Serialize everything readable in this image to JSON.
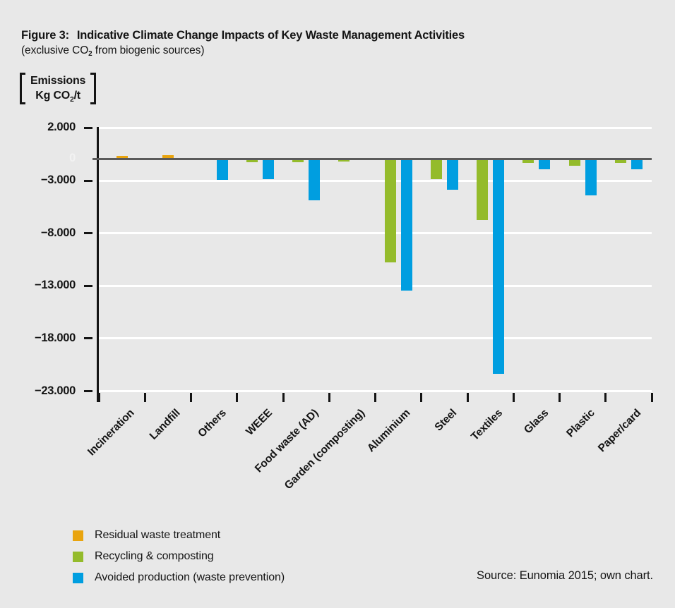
{
  "header": {
    "figure_label": "Figure 3:",
    "title": "Indicative Climate Change Impacts of Key Waste Management Activities",
    "subtitle_pre": "(exclusive CO",
    "subtitle_sub": "2",
    "subtitle_post": " from biogenic sources)"
  },
  "unit": {
    "line1": "Emissions",
    "line2_pre": "Kg CO",
    "line2_sub": "2",
    "line2_post": "/t"
  },
  "source_text": "Source: Eunomia 2015; own chart.",
  "colors": {
    "background": "#e8e8e8",
    "gridline": "#ffffff",
    "zero_line": "#5a5a5a",
    "axis": "#141414",
    "zero_label": "#f2f2f2",
    "residual": "#e9a40e",
    "recycling": "#94bb2b",
    "avoided": "#009ee0"
  },
  "chart_data": {
    "type": "bar",
    "title": "Figure 3: Indicative Climate Change Impacts of Key Waste Management Activities",
    "subtitle": "(exclusive CO2 from biogenic sources)",
    "ylabel": "Emissions Kg CO2/t",
    "xlabel": "",
    "ylim": [
      -23000,
      2000
    ],
    "grid": "horizontal white gridlines on grey background",
    "legend_position": "bottom-left",
    "yticks": [
      {
        "label": "2.000",
        "value": 2000
      },
      {
        "label": "0",
        "value": 0
      },
      {
        "label": "−3.000",
        "value": -3000
      },
      {
        "label": "−8.000",
        "value": -8000
      },
      {
        "label": "−13.000",
        "value": -13000
      },
      {
        "label": "−18.000",
        "value": -18000
      },
      {
        "label": "−23.000",
        "value": -23000
      }
    ],
    "categories": [
      "Incineration",
      "Landfill",
      "Others",
      "WEEE",
      "Food waste (AD)",
      "Garden (composting)",
      "Aluminium",
      "Steel",
      "Textiles",
      "Glass",
      "Plastic",
      "Paper/card"
    ],
    "series": [
      {
        "name": "Residual waste treatment",
        "color": "#e9a40e",
        "values": [
          200,
          250,
          null,
          null,
          null,
          null,
          null,
          null,
          null,
          null,
          null,
          null
        ]
      },
      {
        "name": "Recycling & composting",
        "color": "#94bb2b",
        "values": [
          null,
          null,
          null,
          -500,
          -500,
          -400,
          -10800,
          -2800,
          -6800,
          -600,
          -1000,
          -600
        ]
      },
      {
        "name": "Avoided production (waste prevention)",
        "color": "#009ee0",
        "values": [
          null,
          null,
          -2900,
          -2800,
          -4900,
          null,
          -13500,
          -3900,
          -21400,
          -1500,
          -4400,
          -1500
        ]
      }
    ]
  }
}
